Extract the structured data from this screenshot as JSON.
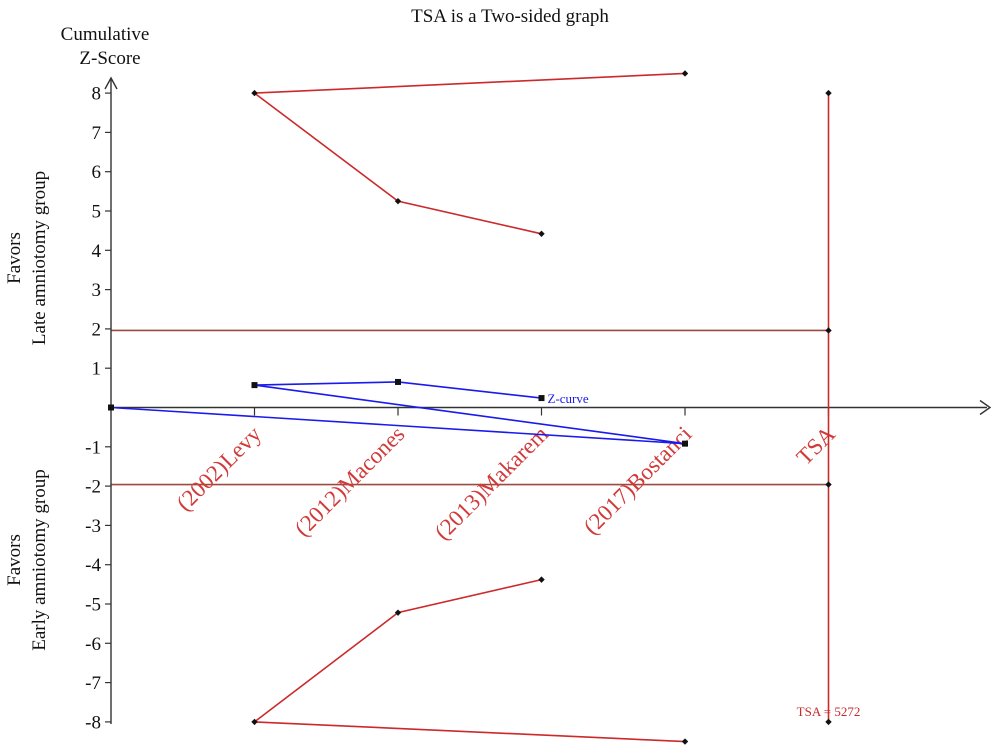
{
  "chart_data": {
    "type": "line",
    "title": "TSA is a Two-sided graph",
    "ylabel_top": "Cumulative",
    "ylabel_bottom": "Z-Score",
    "favors_top": [
      "Favors",
      "Late amniotomy group"
    ],
    "favors_bottom": [
      "Favors",
      "Early amniotomy group"
    ],
    "ylim": [
      -8.5,
      8.5
    ],
    "yticks": [
      -8,
      -7,
      -6,
      -5,
      -4,
      -3,
      -2,
      -1,
      1,
      2,
      3,
      4,
      5,
      6,
      7,
      8
    ],
    "categories": [
      "(2002)Levy",
      "(2012)Macones",
      "(2013)Makarem",
      "(2017)Bostanci",
      "TSA"
    ],
    "colors": {
      "boundary": "#cc2a2a",
      "zcurve": "#1a1aee",
      "conventional": "#9b4a40",
      "axis": "#333333",
      "category": "#d23a3a"
    },
    "conventional_boundaries": [
      1.96,
      -1.96
    ],
    "monitoring_boundary_upper": {
      "x": [
        1,
        2,
        3
      ],
      "y": [
        8.0,
        5.25,
        4.42
      ]
    },
    "monitoring_boundary_lower": {
      "x": [
        1,
        2,
        3
      ],
      "y": [
        -8.0,
        -5.22,
        -4.38
      ]
    },
    "futility_upper": {
      "x": [
        1,
        4
      ],
      "y": [
        8.0,
        8.5
      ]
    },
    "futility_lower": {
      "x": [
        1,
        4
      ],
      "y": [
        -8.0,
        -8.5
      ]
    },
    "z_curve": {
      "name": "Z-curve",
      "x": [
        0,
        4,
        1,
        2,
        3
      ],
      "y": [
        0,
        -0.92,
        0.57,
        0.65,
        0.24
      ]
    },
    "tsa_line": {
      "x": 5,
      "top": 8,
      "bottom": -8,
      "markers": [
        8,
        1.96,
        -1.96,
        -8
      ]
    },
    "tsa_label": "TSA = 5272"
  }
}
